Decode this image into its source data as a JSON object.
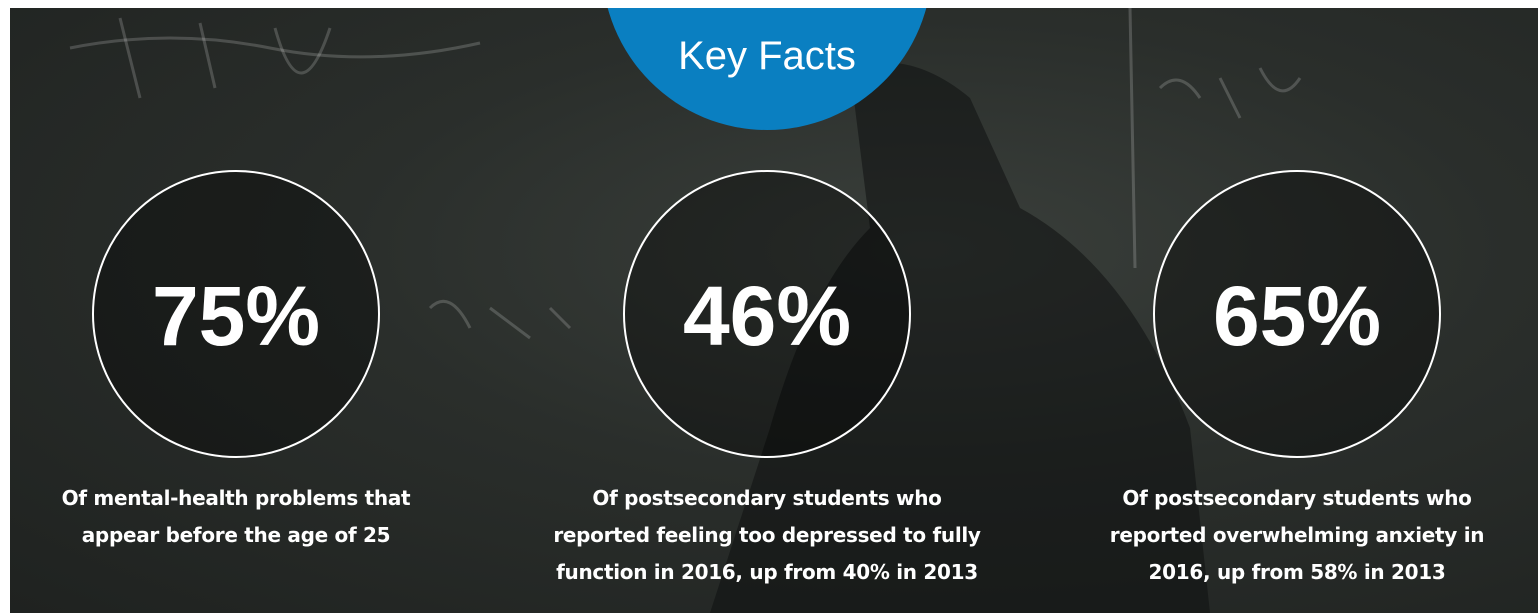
{
  "header": {
    "title": "Key Facts"
  },
  "facts": [
    {
      "value": "75%",
      "description": "Of mental-health problems that appear before the age of 25"
    },
    {
      "value": "46%",
      "description": "Of postsecondary students who reported feeling too depressed to fully function in 2016, up from 40% in 2013"
    },
    {
      "value": "65%",
      "description": "Of postsecondary students who reported overwhelming anxiety in 2016, up from 58% in 2013"
    }
  ]
}
